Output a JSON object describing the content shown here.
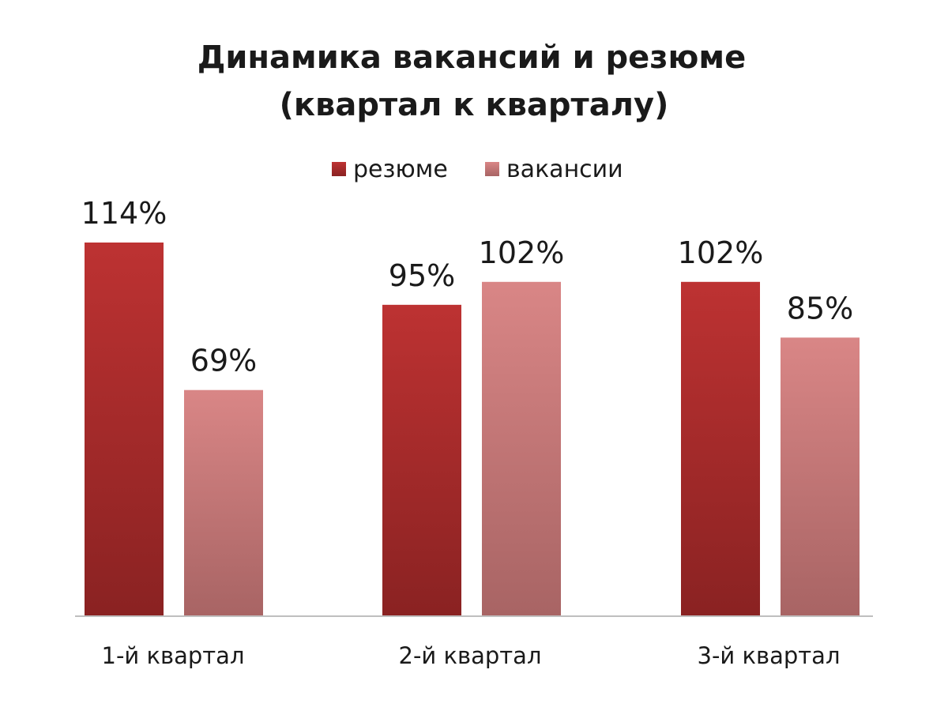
{
  "chart_data": {
    "type": "bar",
    "title_lines": [
      "Динамика вакансий и резюме",
      "(квартал к кварталу)"
    ],
    "categories": [
      "1-й квартал",
      "2-й квартал",
      "3-й квартал"
    ],
    "series": [
      {
        "name": "резюме",
        "values": [
          114,
          95,
          102
        ],
        "labels": [
          "114%",
          "95%",
          "102%"
        ],
        "color_top": "#bd3232",
        "color_bottom": "#8a2222"
      },
      {
        "name": "вакансии",
        "values": [
          69,
          102,
          85
        ],
        "labels": [
          "69%",
          "102%",
          "85%"
        ],
        "color_top": "#d98686",
        "color_bottom": "#a86464"
      }
    ],
    "value_unit": "%",
    "ylim": [
      0,
      114
    ],
    "axis_line_color": "#bfbfbf",
    "legend_position": "top",
    "grid": false
  }
}
